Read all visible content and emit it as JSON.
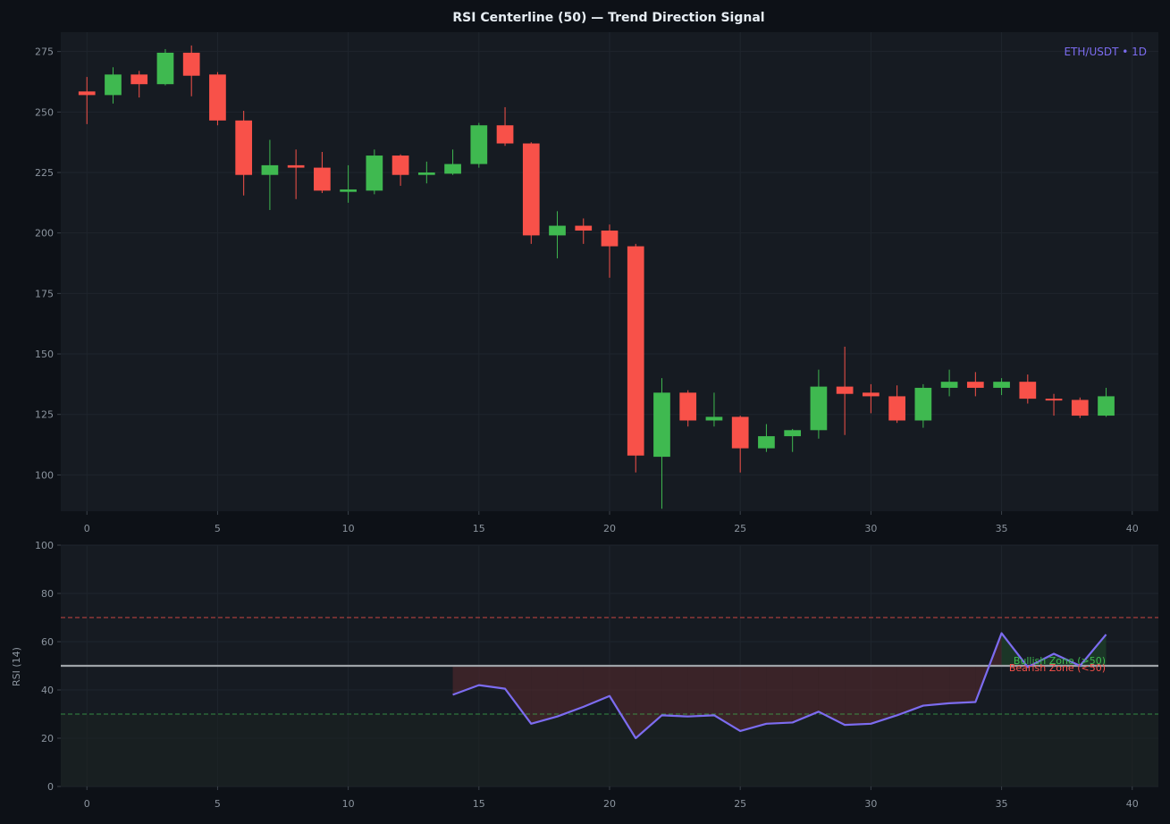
{
  "colors": {
    "background": "#0d1117",
    "panel": "#161b22",
    "grid": "#1f252d",
    "tick_text": "#8b949e",
    "bull": "#3fb950",
    "bear": "#f85149",
    "rsi_line": "#7c6cf0",
    "centerline": "#9ea3a8"
  },
  "chart_data": [
    {
      "type": "candlestick",
      "title": "RSI Centerline (50) — Trend Direction Signal",
      "symbol_label": "ETH/USDT • 1D",
      "xlim": [
        -1,
        41
      ],
      "ylim": [
        85,
        283
      ],
      "xticks": [
        0,
        5,
        10,
        15,
        20,
        25,
        30,
        35,
        40
      ],
      "yticks": [
        100,
        125,
        150,
        175,
        200,
        225,
        250,
        275
      ],
      "grid": true,
      "candles": [
        {
          "x": 0,
          "open": 258.5,
          "high": 264.5,
          "low": 245,
          "close": 257
        },
        {
          "x": 1,
          "open": 257,
          "high": 268.5,
          "low": 253.5,
          "close": 265.5
        },
        {
          "x": 2,
          "open": 265.5,
          "high": 267,
          "low": 256,
          "close": 261.5
        },
        {
          "x": 3,
          "open": 261.5,
          "high": 276,
          "low": 261,
          "close": 274.5
        },
        {
          "x": 4,
          "open": 274.5,
          "high": 277.5,
          "low": 256.5,
          "close": 265
        },
        {
          "x": 5,
          "open": 265.5,
          "high": 266.5,
          "low": 244.5,
          "close": 246.5
        },
        {
          "x": 6,
          "open": 246.5,
          "high": 250.5,
          "low": 215.5,
          "close": 224
        },
        {
          "x": 7,
          "open": 224,
          "high": 238.5,
          "low": 209.5,
          "close": 228
        },
        {
          "x": 8,
          "open": 228,
          "high": 234.5,
          "low": 214,
          "close": 227
        },
        {
          "x": 9,
          "open": 227,
          "high": 233.5,
          "low": 216.5,
          "close": 217.5
        },
        {
          "x": 10,
          "open": 217,
          "high": 228,
          "low": 212.5,
          "close": 218
        },
        {
          "x": 11,
          "open": 217.5,
          "high": 234.5,
          "low": 216,
          "close": 232
        },
        {
          "x": 12,
          "open": 232,
          "high": 232.5,
          "low": 219.5,
          "close": 224
        },
        {
          "x": 13,
          "open": 224,
          "high": 229.5,
          "low": 220.5,
          "close": 225
        },
        {
          "x": 14,
          "open": 224.5,
          "high": 234.5,
          "low": 224,
          "close": 228.5
        },
        {
          "x": 15,
          "open": 228.5,
          "high": 245.5,
          "low": 227,
          "close": 244.5
        },
        {
          "x": 16,
          "open": 244.5,
          "high": 252,
          "low": 236,
          "close": 237
        },
        {
          "x": 17,
          "open": 237,
          "high": 237.5,
          "low": 195.5,
          "close": 199
        },
        {
          "x": 18,
          "open": 199,
          "high": 209,
          "low": 189.5,
          "close": 203
        },
        {
          "x": 19,
          "open": 203,
          "high": 206,
          "low": 195.5,
          "close": 201
        },
        {
          "x": 20,
          "open": 201,
          "high": 203.5,
          "low": 181.5,
          "close": 194.5
        },
        {
          "x": 21,
          "open": 194.5,
          "high": 195.5,
          "low": 101,
          "close": 108
        },
        {
          "x": 22,
          "open": 107.5,
          "high": 140,
          "low": 86,
          "close": 134
        },
        {
          "x": 23,
          "open": 134,
          "high": 135,
          "low": 120,
          "close": 122.5
        },
        {
          "x": 24,
          "open": 122.5,
          "high": 134,
          "low": 120,
          "close": 124
        },
        {
          "x": 25,
          "open": 124,
          "high": 124.5,
          "low": 101,
          "close": 111
        },
        {
          "x": 26,
          "open": 111,
          "high": 121,
          "low": 109.5,
          "close": 116
        },
        {
          "x": 27,
          "open": 116,
          "high": 119,
          "low": 109.5,
          "close": 118.5
        },
        {
          "x": 28,
          "open": 118.5,
          "high": 143.5,
          "low": 115,
          "close": 136.5
        },
        {
          "x": 29,
          "open": 136.5,
          "high": 153,
          "low": 116.5,
          "close": 133.5
        },
        {
          "x": 30,
          "open": 134,
          "high": 137.5,
          "low": 125.5,
          "close": 132.5
        },
        {
          "x": 31,
          "open": 132.5,
          "high": 137,
          "low": 121.5,
          "close": 122.5
        },
        {
          "x": 32,
          "open": 122.5,
          "high": 137.5,
          "low": 119.5,
          "close": 136
        },
        {
          "x": 33,
          "open": 136,
          "high": 143.5,
          "low": 132.5,
          "close": 138.5
        },
        {
          "x": 34,
          "open": 138.5,
          "high": 142.5,
          "low": 132.5,
          "close": 136
        },
        {
          "x": 35,
          "open": 136,
          "high": 140,
          "low": 133,
          "close": 138.5
        },
        {
          "x": 36,
          "open": 138.5,
          "high": 141.5,
          "low": 129.5,
          "close": 131.5
        },
        {
          "x": 37,
          "open": 131.5,
          "high": 133.5,
          "low": 124.5,
          "close": 131
        },
        {
          "x": 38,
          "open": 131,
          "high": 132,
          "low": 123.5,
          "close": 124.5
        },
        {
          "x": 39,
          "open": 124.5,
          "high": 136,
          "low": 124,
          "close": 132.5
        }
      ]
    },
    {
      "type": "line",
      "ylabel": "RSI (14)",
      "xlim": [
        -1,
        41
      ],
      "ylim": [
        0,
        100
      ],
      "xticks": [
        0,
        5,
        10,
        15,
        20,
        25,
        30,
        35,
        40
      ],
      "yticks": [
        0,
        20,
        40,
        60,
        80,
        100
      ],
      "grid": true,
      "centerline": 50,
      "overbought": 70,
      "oversold": 30,
      "series": [
        {
          "x": [
            14,
            15,
            16,
            17,
            18,
            19,
            20,
            21,
            22,
            23,
            24,
            25,
            26,
            27,
            28,
            29,
            30,
            31,
            32,
            33,
            34,
            35,
            36,
            37,
            38,
            39
          ],
          "values": [
            38,
            42,
            40.5,
            26,
            29,
            33,
            37.5,
            20,
            29.5,
            29,
            29.5,
            23,
            26,
            26.5,
            31,
            25.5,
            26,
            29.5,
            33.5,
            34.5,
            35,
            63.5,
            49.5,
            55,
            50,
            63
          ]
        }
      ],
      "annotations": {
        "bullish_zone": "Bullish Zone (>50)",
        "bearish_zone": "Bearish Zone (<50)"
      }
    }
  ]
}
